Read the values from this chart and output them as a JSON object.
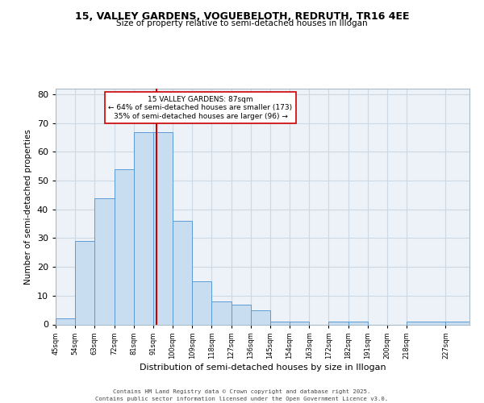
{
  "title_line1": "15, VALLEY GARDENS, VOGUEBELOTH, REDRUTH, TR16 4EE",
  "title_line2": "Size of property relative to semi-detached houses in Illogan",
  "xlabel": "Distribution of semi-detached houses by size in Illogan",
  "ylabel": "Number of semi-detached properties",
  "footnote1": "Contains HM Land Registry data © Crown copyright and database right 2025.",
  "footnote2": "Contains public sector information licensed under the Open Government Licence v3.0.",
  "annotation_title": "15 VALLEY GARDENS: 87sqm",
  "annotation_line1": "← 64% of semi-detached houses are smaller (173)",
  "annotation_line2": "35% of semi-detached houses are larger (96) →",
  "bin_labels": [
    "45sqm",
    "54sqm",
    "63sqm",
    "72sqm",
    "81sqm",
    "91sqm",
    "100sqm",
    "109sqm",
    "118sqm",
    "127sqm",
    "136sqm",
    "145sqm",
    "154sqm",
    "163sqm",
    "172sqm",
    "182sqm",
    "191sqm",
    "200sqm",
    "218sqm",
    "227sqm"
  ],
  "heights": [
    2,
    29,
    44,
    54,
    67,
    67,
    36,
    15,
    8,
    7,
    5,
    1,
    1,
    0,
    1,
    1,
    0,
    0,
    1,
    1
  ],
  "bin_edges": [
    40.5,
    49.5,
    58.5,
    67.5,
    76.5,
    85.5,
    94.5,
    103.5,
    112.5,
    121.5,
    130.5,
    139.5,
    148.5,
    157.5,
    166.5,
    175.5,
    184.5,
    193.5,
    202.5,
    220.5,
    231.5
  ],
  "property_line_x": 87,
  "bar_facecolor": "#c9ddf0",
  "bar_edgecolor": "#5b9bd5",
  "line_color": "#cc0000",
  "grid_color": "#ccd8e4",
  "background_color": "#edf2f8",
  "ylim": [
    0,
    82
  ],
  "yticks": [
    0,
    10,
    20,
    30,
    40,
    50,
    60,
    70,
    80
  ]
}
